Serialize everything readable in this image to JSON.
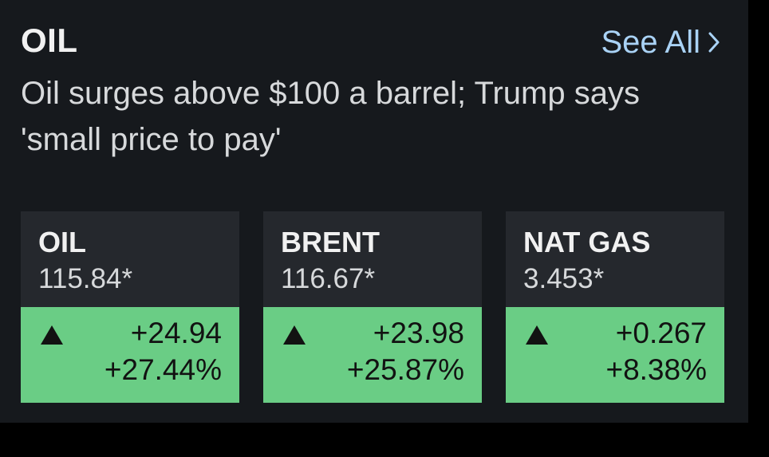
{
  "section": {
    "title": "OIL",
    "see_all_label": "See All"
  },
  "headline": "Oil surges above $100 a barrel; Trump says 'small price to pay'",
  "colors": {
    "panel_background": "#16191d",
    "card_top": "#25282d",
    "positive": "#6acd85",
    "link": "#a9d2f5"
  },
  "quotes": [
    {
      "name": "OIL",
      "price": "115.84*",
      "change": "+24.94",
      "change_pct": "+27.44%",
      "direction_icon": "triangle-up-icon"
    },
    {
      "name": "BRENT",
      "price": "116.67*",
      "change": "+23.98",
      "change_pct": "+25.87%",
      "direction_icon": "triangle-up-icon"
    },
    {
      "name": "NAT GAS",
      "price": "3.453*",
      "change": "+0.267",
      "change_pct": "+8.38%",
      "direction_icon": "triangle-up-icon"
    }
  ]
}
